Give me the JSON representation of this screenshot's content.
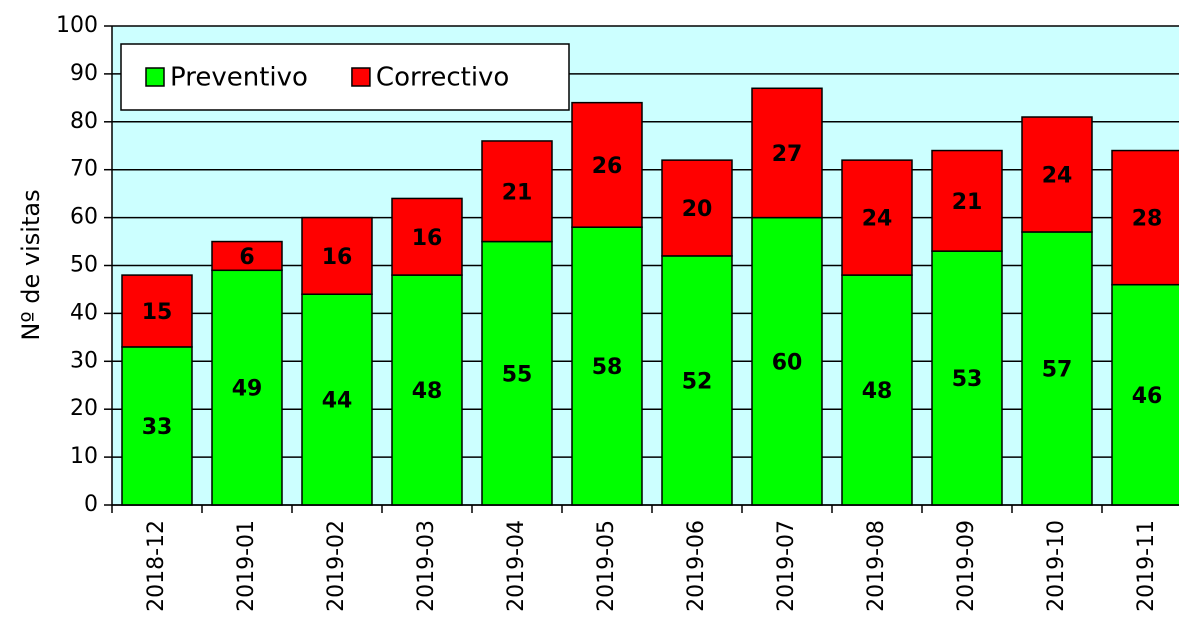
{
  "chart_data": {
    "type": "stacked_bar",
    "y_label": "Nº de visitas",
    "categories": [
      "2018-12",
      "2019-01",
      "2019-02",
      "2019-03",
      "2019-04",
      "2019-05",
      "2019-06",
      "2019-07",
      "2019-08",
      "2019-09",
      "2019-10",
      "2019-11"
    ],
    "series": [
      {
        "name": "Preventivo",
        "color": "#00ff00",
        "values": [
          33,
          49,
          44,
          48,
          55,
          58,
          52,
          60,
          48,
          53,
          57,
          46
        ]
      },
      {
        "name": "Correctivo",
        "color": "#ff0000",
        "values": [
          15,
          6,
          16,
          16,
          21,
          26,
          20,
          27,
          24,
          21,
          24,
          28
        ]
      }
    ],
    "ylim": [
      0,
      100
    ],
    "yticks": [
      0,
      10,
      20,
      30,
      40,
      50,
      60,
      70,
      80,
      90,
      100
    ],
    "grid": true,
    "legend": "top-left",
    "plot_background": "#ccffff"
  }
}
